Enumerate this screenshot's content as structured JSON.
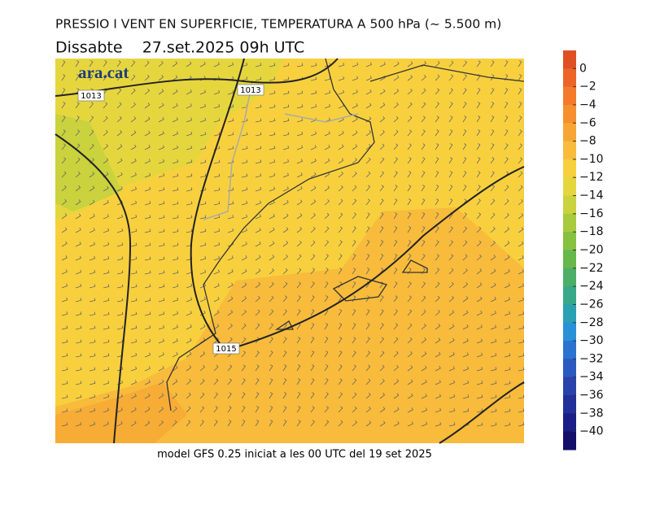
{
  "header": {
    "title": "PRESSIO I VENT EN SUPERFICIE, TEMPERATURA A 500 hPa (~ 5.500 m)",
    "subtitle": "Dissabte    27.set.2025 09h UTC",
    "logo": "ara.cat"
  },
  "map": {
    "isobar_labels": [
      "1013",
      "1013",
      "1015"
    ]
  },
  "footer": "model GFS 0.25 iniciat a les 00 UTC del 19 set 2025",
  "colorbar": {
    "ticks": [
      {
        "value": 0,
        "label": "0"
      },
      {
        "value": -2,
        "label": "−2"
      },
      {
        "value": -4,
        "label": "−4"
      },
      {
        "value": -6,
        "label": "−6"
      },
      {
        "value": -8,
        "label": "−8"
      },
      {
        "value": -10,
        "label": "−10"
      },
      {
        "value": -12,
        "label": "−12"
      },
      {
        "value": -14,
        "label": "−14"
      },
      {
        "value": -16,
        "label": "−16"
      },
      {
        "value": -18,
        "label": "−18"
      },
      {
        "value": -20,
        "label": "−20"
      },
      {
        "value": -22,
        "label": "−22"
      },
      {
        "value": -24,
        "label": "−24"
      },
      {
        "value": -26,
        "label": "−26"
      },
      {
        "value": -28,
        "label": "−28"
      },
      {
        "value": -30,
        "label": "−30"
      },
      {
        "value": -32,
        "label": "−32"
      },
      {
        "value": -34,
        "label": "−34"
      },
      {
        "value": -36,
        "label": "−36"
      },
      {
        "value": -38,
        "label": "−38"
      },
      {
        "value": -40,
        "label": "−40"
      }
    ],
    "colors": [
      "#df4f24",
      "#ec6427",
      "#f27a2a",
      "#f6902f",
      "#f7a535",
      "#f8bb3b",
      "#f7d03e",
      "#e6d63e",
      "#cad23d",
      "#a8ca3d",
      "#86c140",
      "#66b84a",
      "#4caf66",
      "#38a88b",
      "#2aa1b1",
      "#2a90d8",
      "#2a73d0",
      "#2a59c0",
      "#2a43aa",
      "#22309a",
      "#1a1e86",
      "#12106a"
    ]
  }
}
